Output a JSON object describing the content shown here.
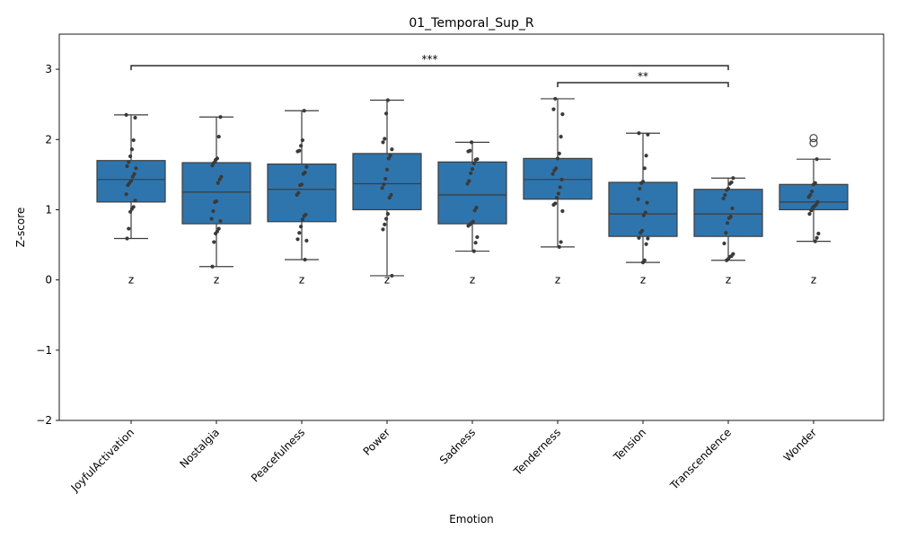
{
  "chart_data": {
    "type": "box",
    "title": "01_Temporal_Sup_R",
    "xlabel": "Emotion",
    "ylabel": "Z-score",
    "ylim": [
      -2,
      3.5
    ],
    "yticks": [
      -2,
      -1,
      0,
      1,
      2,
      3
    ],
    "ytick_labels": [
      "−2",
      "−1",
      "0",
      "1",
      "2",
      "3"
    ],
    "categories": [
      "JoyfulActivation",
      "Nostalgia",
      "Peacefulness",
      "Power",
      "Sadness",
      "Tenderness",
      "Tension",
      "Transcendence",
      "Wonder"
    ],
    "box_color": "#2f75ad",
    "marker_label": "z",
    "marker_color": "#ff0000",
    "boxes": [
      {
        "q1": 1.11,
        "median": 1.43,
        "q3": 1.7,
        "whisker_low": 0.59,
        "whisker_high": 2.35,
        "outliers": []
      },
      {
        "q1": 0.8,
        "median": 1.25,
        "q3": 1.67,
        "whisker_low": 0.19,
        "whisker_high": 2.32,
        "outliers": []
      },
      {
        "q1": 0.83,
        "median": 1.29,
        "q3": 1.65,
        "whisker_low": 0.29,
        "whisker_high": 2.41,
        "outliers": []
      },
      {
        "q1": 1.0,
        "median": 1.37,
        "q3": 1.8,
        "whisker_low": 0.06,
        "whisker_high": 2.56,
        "outliers": []
      },
      {
        "q1": 0.8,
        "median": 1.21,
        "q3": 1.68,
        "whisker_low": 0.41,
        "whisker_high": 1.96,
        "outliers": []
      },
      {
        "q1": 1.15,
        "median": 1.43,
        "q3": 1.73,
        "whisker_low": 0.47,
        "whisker_high": 2.58,
        "outliers": []
      },
      {
        "q1": 0.62,
        "median": 0.94,
        "q3": 1.39,
        "whisker_low": 0.25,
        "whisker_high": 2.09,
        "outliers": []
      },
      {
        "q1": 0.62,
        "median": 0.94,
        "q3": 1.29,
        "whisker_low": 0.28,
        "whisker_high": 1.45,
        "outliers": []
      },
      {
        "q1": 1.0,
        "median": 1.11,
        "q3": 1.36,
        "whisker_low": 0.55,
        "whisker_high": 1.72,
        "outliers": [
          2.02,
          1.95
        ]
      }
    ],
    "points": [
      [
        2.35,
        2.31,
        1.99,
        1.86,
        1.76,
        1.68,
        1.62,
        1.59,
        1.51,
        1.47,
        1.41,
        1.38,
        1.35,
        1.22,
        1.13,
        1.04,
        1.01,
        0.97,
        0.73,
        0.59
      ],
      [
        2.32,
        2.04,
        1.73,
        1.71,
        1.67,
        1.63,
        1.47,
        1.43,
        1.38,
        1.12,
        1.11,
        0.98,
        0.87,
        0.84,
        0.73,
        0.69,
        0.66,
        0.54,
        0.19
      ],
      [
        2.41,
        1.99,
        1.91,
        1.84,
        1.83,
        1.61,
        1.53,
        1.51,
        1.36,
        1.35,
        1.24,
        1.21,
        0.93,
        0.91,
        0.86,
        0.76,
        0.67,
        0.58,
        0.56,
        0.29
      ],
      [
        2.56,
        2.37,
        2.01,
        1.96,
        1.86,
        1.77,
        1.73,
        1.57,
        1.44,
        1.36,
        1.31,
        1.21,
        1.17,
        0.94,
        0.87,
        0.79,
        0.72,
        0.06
      ],
      [
        1.96,
        1.84,
        1.83,
        1.72,
        1.71,
        1.66,
        1.58,
        1.52,
        1.41,
        1.37,
        1.03,
        0.99,
        0.83,
        0.81,
        0.79,
        0.77,
        0.61,
        0.53,
        0.41
      ],
      [
        2.58,
        2.43,
        2.36,
        2.04,
        1.8,
        1.73,
        1.59,
        1.56,
        1.51,
        1.43,
        1.32,
        1.23,
        1.17,
        1.09,
        1.07,
        0.98,
        0.54,
        0.47
      ],
      [
        2.09,
        2.07,
        1.77,
        1.59,
        1.4,
        1.38,
        1.3,
        1.15,
        1.1,
        0.96,
        0.92,
        0.7,
        0.67,
        0.6,
        0.59,
        0.51,
        0.28,
        0.25
      ],
      [
        1.45,
        1.39,
        1.37,
        1.3,
        1.28,
        1.21,
        1.16,
        1.02,
        0.9,
        0.88,
        0.81,
        0.67,
        0.52,
        0.37,
        0.34,
        0.33,
        0.3,
        0.28
      ],
      [
        1.72,
        1.38,
        1.36,
        1.26,
        1.21,
        1.18,
        1.11,
        1.07,
        1.05,
        1.03,
        0.99,
        0.94,
        0.66,
        0.6,
        0.55
      ]
    ],
    "significance": [
      {
        "from": "JoyfulActivation",
        "to": "Transcendence",
        "y": 3.05,
        "label": "***"
      },
      {
        "from": "Tenderness",
        "to": "Transcendence",
        "y": 2.81,
        "label": "**"
      }
    ]
  }
}
